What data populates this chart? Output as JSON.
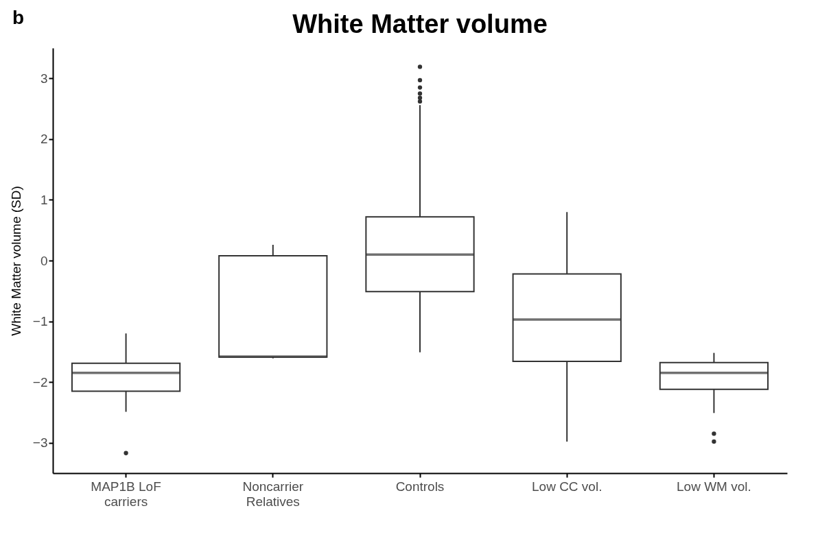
{
  "chart_data": {
    "type": "box",
    "title": "White Matter volume",
    "ylabel": "White Matter volume (SD)",
    "annotations": [
      "b"
    ],
    "color": "#333333",
    "categories": [
      "MAP1B LoF\ncarriers",
      "Noncarrier\nRelatives",
      "Controls",
      "Low CC vol.",
      "Low WM vol."
    ],
    "boxes": [
      {
        "low": -2.49,
        "q1": -2.15,
        "median": -1.85,
        "q3": -1.69,
        "high": -1.2,
        "outliers": [
          -3.17
        ]
      },
      {
        "low": -1.61,
        "q1": -1.59,
        "median": -1.58,
        "q3": 0.08,
        "high": 0.26
      },
      {
        "low": -1.51,
        "q1": -0.51,
        "median": 0.1,
        "q3": 0.72,
        "high": 2.56,
        "outliers": [
          2.62,
          2.68,
          2.75,
          2.85,
          2.97,
          3.19
        ]
      },
      {
        "low": -2.98,
        "q1": -1.66,
        "median": -0.97,
        "q3": -0.22,
        "high": 0.8
      },
      {
        "low": -2.51,
        "q1": -2.12,
        "median": -1.85,
        "q3": -1.68,
        "high": -1.52,
        "outliers": [
          -2.85,
          -2.98
        ]
      }
    ],
    "ylim": [
      -3.5,
      3.5
    ],
    "yticks": [
      {
        "value": -3,
        "label": "−3"
      },
      {
        "value": -2,
        "label": "−2"
      },
      {
        "value": -1,
        "label": "−1"
      },
      0,
      1,
      2,
      3
    ]
  }
}
